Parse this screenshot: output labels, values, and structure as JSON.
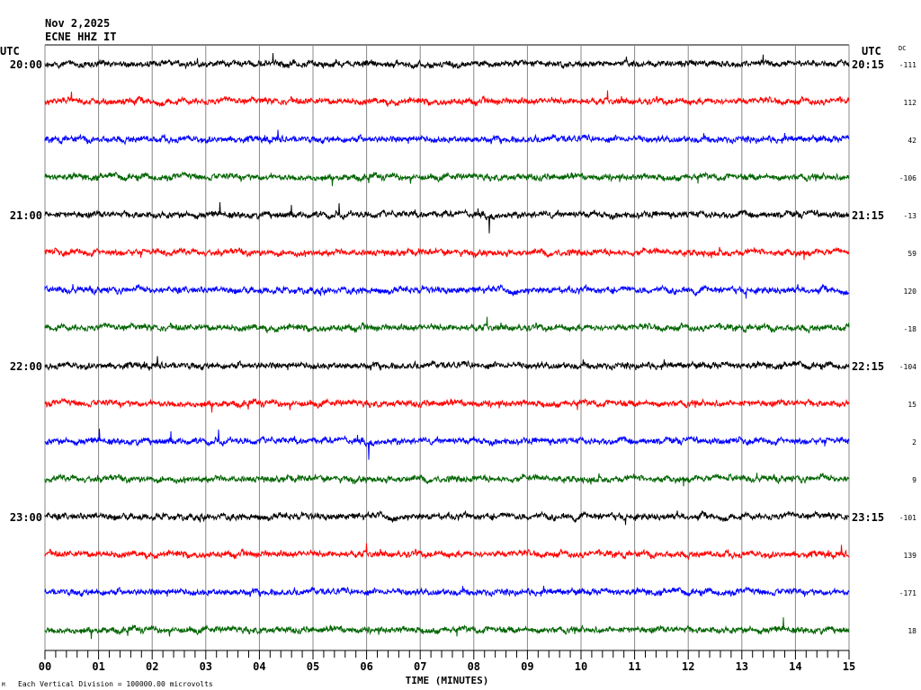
{
  "header": {
    "date": "Nov 2,2025",
    "station": "ECNE HHZ IT"
  },
  "chart_data": {
    "type": "line",
    "title": "Nov 2,2025",
    "subtitle": "ECNE HHZ IT",
    "left_axis_label": "UTC",
    "right_axis_label": "UTC",
    "dc_label": "DC",
    "xlabel": "TIME (MINUTES)",
    "xlim": [
      0,
      15
    ],
    "x_ticks": [
      "00",
      "01",
      "02",
      "03",
      "04",
      "05",
      "06",
      "07",
      "08",
      "09",
      "10",
      "11",
      "12",
      "13",
      "14",
      "15"
    ],
    "minor_ticks_per_minute": 5,
    "grid": "vertical",
    "scale_note": "Each Vertical Division = 100000.00 microvolts",
    "corner_mark": "M",
    "colors": [
      "#000000",
      "#ff0000",
      "#0000ff",
      "#006400"
    ],
    "traces": [
      {
        "left_label": "20:00",
        "right_label": "20:15",
        "dc": "-111"
      },
      {
        "left_label": "",
        "right_label": "",
        "dc": "112"
      },
      {
        "left_label": "",
        "right_label": "",
        "dc": "42"
      },
      {
        "left_label": "",
        "right_label": "",
        "dc": "-106"
      },
      {
        "left_label": "21:00",
        "right_label": "21:15",
        "dc": "-13"
      },
      {
        "left_label": "",
        "right_label": "",
        "dc": "59"
      },
      {
        "left_label": "",
        "right_label": "",
        "dc": "120"
      },
      {
        "left_label": "",
        "right_label": "",
        "dc": "-18"
      },
      {
        "left_label": "22:00",
        "right_label": "22:15",
        "dc": "-104"
      },
      {
        "left_label": "",
        "right_label": "",
        "dc": "15"
      },
      {
        "left_label": "",
        "right_label": "",
        "dc": "2"
      },
      {
        "left_label": "",
        "right_label": "",
        "dc": "9"
      },
      {
        "left_label": "23:00",
        "right_label": "23:15",
        "dc": "-101"
      },
      {
        "left_label": "",
        "right_label": "",
        "dc": "139"
      },
      {
        "left_label": "",
        "right_label": "",
        "dc": "-171"
      },
      {
        "left_label": "",
        "right_label": "",
        "dc": "18"
      }
    ]
  }
}
